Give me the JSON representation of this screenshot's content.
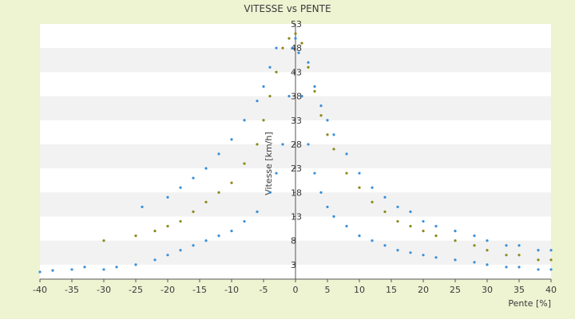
{
  "chart_data": {
    "type": "scatter",
    "title": "VITESSE vs PENTE",
    "xlabel": "Pente [%]",
    "ylabel": "Vitesse [km/h]",
    "xlim": [
      -40,
      40
    ],
    "ylim": [
      0,
      53
    ],
    "x_ticks": [
      "-40",
      "-35",
      "-30",
      "-25",
      "-20",
      "-15",
      "-10",
      "-5",
      "0",
      "5",
      "10",
      "15",
      "20",
      "25",
      "30",
      "35",
      "40"
    ],
    "y_ticks": [
      "53",
      "48",
      "43",
      "38",
      "33",
      "28",
      "23",
      "18",
      "13",
      "8",
      "3"
    ],
    "grid": "horizontal alternating bands",
    "legend": "none",
    "colors": {
      "series_a": "#3a8fd8",
      "series_b": "#8a8a1a",
      "band_light": "#ffffff",
      "band_dark": "#f2f2f2",
      "background": "#eef3d2",
      "axis": "#555555"
    },
    "series": [
      {
        "marker": "blue-dot",
        "points": [
          [
            -40,
            1.5
          ],
          [
            -38,
            1.8
          ],
          [
            -35,
            2
          ],
          [
            -33,
            2.5
          ],
          [
            -30,
            2
          ],
          [
            -28,
            2.5
          ],
          [
            -25,
            3
          ],
          [
            -22,
            4
          ],
          [
            -20,
            5
          ],
          [
            -18,
            6
          ],
          [
            -16,
            7
          ],
          [
            -14,
            8
          ],
          [
            -12,
            9
          ],
          [
            -10,
            10
          ],
          [
            -8,
            12
          ],
          [
            -6,
            14
          ],
          [
            -4,
            18
          ],
          [
            -3,
            22
          ],
          [
            -2,
            28
          ],
          [
            -1,
            38
          ],
          [
            -0.5,
            48
          ],
          [
            0,
            50
          ],
          [
            0.5,
            47
          ],
          [
            1,
            38
          ],
          [
            2,
            28
          ],
          [
            3,
            22
          ],
          [
            4,
            18
          ],
          [
            5,
            15
          ],
          [
            6,
            13
          ],
          [
            8,
            11
          ],
          [
            10,
            9
          ],
          [
            12,
            8
          ],
          [
            14,
            7
          ],
          [
            16,
            6
          ],
          [
            18,
            5.5
          ],
          [
            20,
            5
          ],
          [
            22,
            4.5
          ],
          [
            25,
            4
          ],
          [
            28,
            3.5
          ],
          [
            30,
            3
          ],
          [
            33,
            2.5
          ],
          [
            35,
            2.5
          ],
          [
            38,
            2
          ],
          [
            40,
            2
          ]
        ]
      },
      {
        "marker": "olive-dot",
        "points": [
          [
            -30,
            8
          ],
          [
            -25,
            9
          ],
          [
            -22,
            10
          ],
          [
            -20,
            11
          ],
          [
            -18,
            12
          ],
          [
            -16,
            14
          ],
          [
            -14,
            16
          ],
          [
            -12,
            18
          ],
          [
            -10,
            20
          ],
          [
            -8,
            24
          ],
          [
            -6,
            28
          ],
          [
            -5,
            33
          ],
          [
            -4,
            38
          ],
          [
            -3,
            43
          ],
          [
            -2,
            48
          ],
          [
            -1,
            50
          ],
          [
            0,
            51
          ],
          [
            1,
            49
          ],
          [
            2,
            44
          ],
          [
            3,
            39
          ],
          [
            4,
            34
          ],
          [
            5,
            30
          ],
          [
            6,
            27
          ],
          [
            8,
            22
          ],
          [
            10,
            19
          ],
          [
            12,
            16
          ],
          [
            14,
            14
          ],
          [
            16,
            12
          ],
          [
            18,
            11
          ],
          [
            20,
            10
          ],
          [
            22,
            9
          ],
          [
            25,
            8
          ],
          [
            28,
            7
          ],
          [
            30,
            6
          ],
          [
            33,
            5
          ],
          [
            35,
            5
          ],
          [
            38,
            4
          ],
          [
            40,
            4
          ]
        ]
      },
      {
        "marker": "blue-dot",
        "points": [
          [
            -24,
            15
          ],
          [
            -20,
            17
          ],
          [
            -18,
            19
          ],
          [
            -16,
            21
          ],
          [
            -14,
            23
          ],
          [
            -12,
            26
          ],
          [
            -10,
            29
          ],
          [
            -8,
            33
          ],
          [
            -6,
            37
          ],
          [
            -5,
            40
          ],
          [
            -4,
            44
          ],
          [
            -3,
            48
          ],
          [
            2,
            45
          ],
          [
            3,
            40
          ],
          [
            4,
            36
          ],
          [
            5,
            33
          ],
          [
            6,
            30
          ],
          [
            8,
            26
          ],
          [
            10,
            22
          ],
          [
            12,
            19
          ],
          [
            14,
            17
          ],
          [
            16,
            15
          ],
          [
            18,
            14
          ],
          [
            20,
            12
          ],
          [
            22,
            11
          ],
          [
            25,
            10
          ],
          [
            28,
            9
          ],
          [
            30,
            8
          ],
          [
            33,
            7
          ],
          [
            35,
            7
          ],
          [
            38,
            6
          ],
          [
            40,
            6
          ]
        ]
      }
    ]
  }
}
